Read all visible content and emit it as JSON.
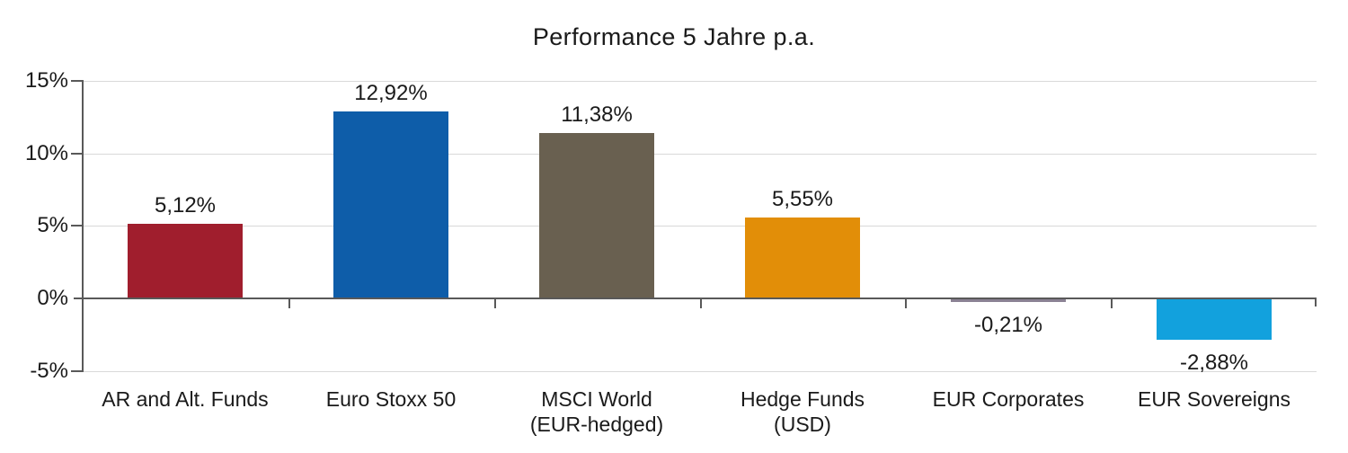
{
  "title": "Performance 5 Jahre p.a.",
  "chart_data": {
    "type": "bar",
    "title": "Performance 5 Jahre p.a.",
    "categories": [
      "AR and Alt. Funds",
      "Euro Stoxx 50",
      "MSCI World (EUR-hedged)",
      "Hedge Funds (USD)",
      "EUR Corporates",
      "EUR Sovereigns"
    ],
    "category_lines": [
      [
        "AR and Alt. Funds"
      ],
      [
        "Euro Stoxx 50"
      ],
      [
        "MSCI World",
        "(EUR-hedged)"
      ],
      [
        "Hedge Funds",
        "(USD)"
      ],
      [
        "EUR Corporates"
      ],
      [
        "EUR Sovereigns"
      ]
    ],
    "values": [
      5.12,
      12.92,
      11.38,
      5.55,
      -0.21,
      -2.88
    ],
    "value_labels": [
      "5,12%",
      "12,92%",
      "11,38%",
      "5,55%",
      "-0,21%",
      "-2,88%"
    ],
    "bar_colors": [
      "#a01e2d",
      "#0e5da9",
      "#696050",
      "#e28e08",
      "#8b8294",
      "#12a1dd"
    ],
    "ylim": [
      -5,
      15
    ],
    "yticks": [
      {
        "value": 15,
        "label": "15%"
      },
      {
        "value": 10,
        "label": "10%"
      },
      {
        "value": 5,
        "label": "5%"
      },
      {
        "value": 0,
        "label": "0%"
      },
      {
        "value": -5,
        "label": "-5%"
      }
    ],
    "grid": true,
    "legend": "none",
    "xlabel": "",
    "ylabel": "",
    "axis_color": "#595959",
    "gridline_color": "#d9d9d9",
    "text_color": "#1a1a1a"
  }
}
